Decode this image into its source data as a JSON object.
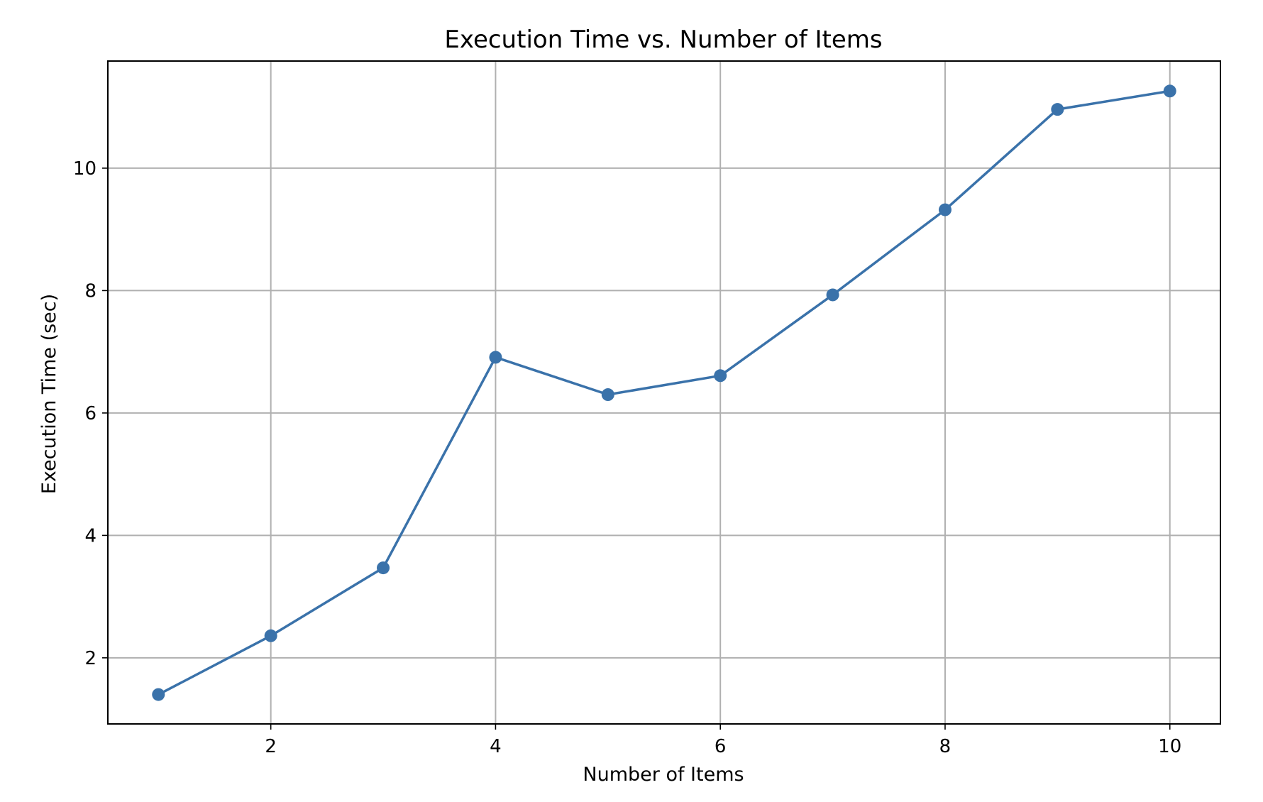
{
  "chart_data": {
    "type": "line",
    "title": "Execution Time vs. Number of Items",
    "xlabel": "Number of Items",
    "ylabel": "Execution Time (sec)",
    "xlim": [
      0.55,
      10.45
    ],
    "ylim": [
      0.92,
      11.75
    ],
    "xticks": [
      2,
      4,
      6,
      8,
      10
    ],
    "yticks": [
      2,
      4,
      6,
      8,
      10
    ],
    "grid": true,
    "line_color": "#3a72aa",
    "series": [
      {
        "x": [
          1,
          2,
          3,
          4,
          5,
          6,
          7,
          8,
          9,
          10
        ],
        "y": [
          1.4,
          2.36,
          3.47,
          6.91,
          6.3,
          6.61,
          7.93,
          9.32,
          10.96,
          11.26
        ]
      }
    ]
  }
}
